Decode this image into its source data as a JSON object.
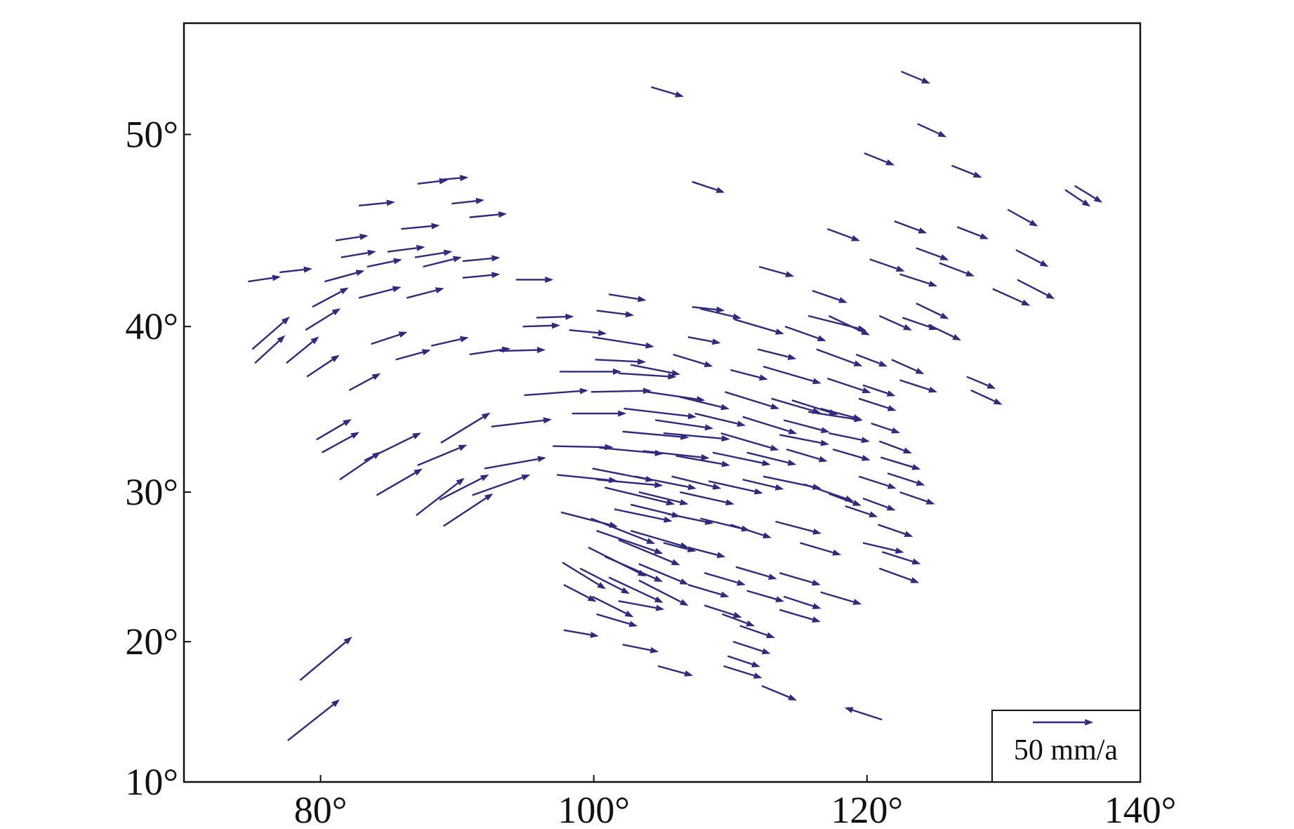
{
  "chart_data": {
    "type": "quiver",
    "color": "#2e2a7c",
    "yscale": "mercator",
    "xlim": [
      70,
      140
    ],
    "ylim": [
      10,
      55
    ],
    "xticks": [
      {
        "value": 80,
        "label": "80°"
      },
      {
        "value": 100,
        "label": "100°"
      },
      {
        "value": 120,
        "label": "120°"
      },
      {
        "value": 140,
        "label": "140°"
      }
    ],
    "yticks": [
      {
        "value": 10,
        "label": "10°"
      },
      {
        "value": 20,
        "label": "20°"
      },
      {
        "value": 30,
        "label": "30°"
      },
      {
        "value": 40,
        "label": "40°"
      },
      {
        "value": 50,
        "label": "50°"
      }
    ],
    "key": {
      "value": 50,
      "label": "50 mm/a"
    },
    "x": [
      74.7,
      77.0,
      81.1,
      82.8,
      87.1,
      88.7,
      89.6,
      90.9,
      85.9,
      81.5,
      83.4,
      84.9,
      86.9,
      87.5,
      90.4,
      80.3,
      82.8,
      86.3,
      90.4,
      94.3,
      79.4,
      78.9,
      75.0,
      75.2,
      77.5,
      79.0,
      82.1,
      83.7,
      85.5,
      88.1,
      90.9,
      93.1,
      79.7,
      80.1,
      81.4,
      83.2,
      84.1,
      87.1,
      88.8,
      87.0,
      89.0,
      88.7,
      91.1,
      92.0,
      92.5,
      78.5,
      77.6,
      104.2,
      122.5,
      123.7,
      119.8,
      126.2,
      107.2,
      130.3,
      134.5,
      135.2,
      117.1,
      122.0,
      126.6,
      130.9,
      123.6,
      120.2,
      125.3,
      112.1,
      122.4,
      131.0,
      129.2,
      116.0,
      101.1,
      123.6,
      100.2,
      107.2,
      107.8,
      110.3,
      115.7,
      117.2,
      114.0,
      120.9,
      124.5,
      122.6,
      95.8,
      94.8,
      98.2,
      99.9,
      106.9,
      112.0,
      116.3,
      119.2,
      121.8,
      127.3,
      127.6,
      122.4,
      100.1,
      102.7,
      105.8,
      97.5,
      101.8,
      110.0,
      112.4,
      117.1,
      119.7,
      94.9,
      99.8,
      103.9,
      106.3,
      109.6,
      113.0,
      114.5,
      116.6,
      119.4,
      98.4,
      102.2,
      104.5,
      107.4,
      110.9,
      113.9,
      115.7,
      120.3,
      102.1,
      105.1,
      109.3,
      113.6,
      117.2,
      120.9,
      97.0,
      100.4,
      103.6,
      106.0,
      108.7,
      111.2,
      114.1,
      117.5,
      121.0,
      97.3,
      99.9,
      100.2,
      103.0,
      105.7,
      108.4,
      110.9,
      112.4,
      115.4,
      119.4,
      121.5,
      122.4,
      100.8,
      103.3,
      106.3,
      117.2,
      119.7,
      97.6,
      99.8,
      101.5,
      102.7,
      105.4,
      107.8,
      110.0,
      113.3,
      118.4,
      120.8,
      100.2,
      101.8,
      102.7,
      105.1,
      106.9,
      115.1,
      119.7,
      121.1,
      99.6,
      100.8,
      103.3,
      108.1,
      110.4,
      113.6,
      120.9,
      97.7,
      99.0,
      101.1,
      103.3,
      106.9,
      111.2,
      113.9,
      116.6,
      97.8,
      99.9,
      101.8,
      108.1,
      113.6,
      100.2,
      109.4,
      110.7,
      97.8,
      102.1,
      110.2,
      109.8,
      104.7,
      109.5,
      112.3,
      121.1
    ],
    "y": [
      42.5,
      43.0,
      44.7,
      46.5,
      47.6,
      47.8,
      46.6,
      45.9,
      45.3,
      43.8,
      43.3,
      44.1,
      43.8,
      43.3,
      43.6,
      42.5,
      41.6,
      41.6,
      42.7,
      42.6,
      41.1,
      39.8,
      38.7,
      37.9,
      37.9,
      37.1,
      36.3,
      39.0,
      38.1,
      38.9,
      38.4,
      38.6,
      33.3,
      32.5,
      30.8,
      32.0,
      29.8,
      31.7,
      33.1,
      28.5,
      27.8,
      29.5,
      29.8,
      31.5,
      34.1,
      17.3,
      13.0,
      52.2,
      52.9,
      50.5,
      49.1,
      48.5,
      47.7,
      46.3,
      47.3,
      47.5,
      45.3,
      45.7,
      45.4,
      44.2,
      44.3,
      43.7,
      43.5,
      43.3,
      42.9,
      42.6,
      42.1,
      42.0,
      41.8,
      41.3,
      40.9,
      41.1,
      41.0,
      40.4,
      40.6,
      40.6,
      40.0,
      40.6,
      40.1,
      40.5,
      40.5,
      40.0,
      39.8,
      39.4,
      39.4,
      38.7,
      38.7,
      38.4,
      38.1,
      37.1,
      36.3,
      36.9,
      38.1,
      37.8,
      38.4,
      37.4,
      37.3,
      37.5,
      37.7,
      37.0,
      36.6,
      36.0,
      36.2,
      36.2,
      35.9,
      36.2,
      35.8,
      35.7,
      35.2,
      35.8,
      34.9,
      35.2,
      34.5,
      34.9,
      34.7,
      34.5,
      35.0,
      34.3,
      33.8,
      33.7,
      33.7,
      33.6,
      33.7,
      33.2,
      32.9,
      32.8,
      32.6,
      32.3,
      32.5,
      32.5,
      32.7,
      32.7,
      32.2,
      31.1,
      31.5,
      30.8,
      31.0,
      31.0,
      30.7,
      30.8,
      31.0,
      30.5,
      31.0,
      31.2,
      30.0,
      30.3,
      30.0,
      30.0,
      29.9,
      29.6,
      28.7,
      28.3,
      28.9,
      29.2,
      28.6,
      28.3,
      27.9,
      28.1,
      29.1,
      27.9,
      27.5,
      26.9,
      27.5,
      26.7,
      26.4,
      26.7,
      26.7,
      26.1,
      26.4,
      25.8,
      25.3,
      24.7,
      25.1,
      24.7,
      25.0,
      25.4,
      25.0,
      24.4,
      24.2,
      23.9,
      23.5,
      23.1,
      23.4,
      23.9,
      23.1,
      22.8,
      22.5,
      22.2,
      21.9,
      21.9,
      21.1,
      20.8,
      19.8,
      20.0,
      19.0,
      18.3,
      18.3,
      16.9,
      14.5
    ],
    "u": [
      27,
      27,
      27,
      30,
      25,
      24,
      27,
      31,
      32,
      29,
      29,
      31,
      31,
      32,
      31,
      33,
      35,
      31,
      31,
      31,
      30,
      29,
      31,
      25,
      27,
      27,
      26,
      30,
      29,
      31,
      34,
      38,
      29,
      31,
      34,
      47,
      38,
      41,
      41,
      40,
      41,
      41,
      48,
      51,
      50,
      43,
      43,
      27,
      24,
      24,
      25,
      25,
      27,
      25,
      21,
      23,
      27,
      27,
      26,
      27,
      27,
      29,
      29,
      29,
      31,
      31,
      31,
      29,
      31,
      27,
      31,
      27,
      34,
      41,
      48,
      34,
      34,
      27,
      27,
      29,
      31,
      31,
      31,
      51,
      27,
      32,
      38,
      26,
      27,
      24,
      26,
      31,
      42,
      41,
      33,
      51,
      48,
      31,
      48,
      36,
      27,
      53,
      50,
      48,
      41,
      45,
      41,
      38,
      34,
      31,
      45,
      60,
      48,
      42,
      45,
      38,
      45,
      24,
      55,
      55,
      48,
      41,
      34,
      27,
      50,
      53,
      55,
      45,
      48,
      41,
      34,
      31,
      33,
      50,
      51,
      55,
      51,
      41,
      45,
      34,
      48,
      41,
      31,
      31,
      29,
      58,
      41,
      45,
      27,
      27,
      47,
      53,
      48,
      41,
      38,
      41,
      34,
      38,
      27,
      29,
      55,
      51,
      48,
      27,
      31,
      34,
      34,
      32,
      48,
      48,
      41,
      34,
      34,
      34,
      33,
      36,
      41,
      45,
      41,
      34,
      31,
      31,
      34,
      27,
      34,
      38,
      31,
      34,
      34,
      27,
      29,
      29,
      30,
      31,
      27,
      29,
      32,
      29,
      -31
    ],
    "v": [
      4,
      3,
      4,
      3,
      3,
      2,
      3,
      3,
      3,
      5,
      6,
      4,
      5,
      8,
      3,
      9,
      9,
      8,
      3,
      0,
      16,
      18,
      27,
      23,
      22,
      18,
      14,
      10,
      8,
      7,
      5,
      1,
      17,
      17,
      23,
      23,
      22,
      17,
      25,
      31,
      27,
      21,
      17,
      9,
      6,
      36,
      34,
      -8,
      -10,
      -11,
      -10,
      -10,
      -9,
      -14,
      -14,
      -14,
      -10,
      -10,
      -10,
      -14,
      -10,
      -10,
      -11,
      -8,
      -10,
      -16,
      -14,
      -10,
      -5,
      -13,
      -4,
      -3,
      -8,
      -12,
      -12,
      -16,
      -12,
      -12,
      -13,
      -10,
      1,
      1,
      -3,
      -8,
      -5,
      -8,
      -14,
      -10,
      -12,
      -10,
      -12,
      -10,
      -2,
      -8,
      -10,
      0,
      -3,
      -8,
      -14,
      -12,
      -9,
      4,
      1,
      -7,
      -10,
      -14,
      -12,
      -12,
      -9,
      -10,
      0,
      -7,
      -7,
      -10,
      -14,
      -10,
      -7,
      -8,
      -5,
      -5,
      -14,
      -8,
      -7,
      -10,
      -1,
      -5,
      -6,
      -8,
      -10,
      -10,
      -10,
      -9,
      -10,
      -5,
      -10,
      -5,
      -10,
      -10,
      -10,
      -8,
      -10,
      -14,
      -10,
      -10,
      -10,
      -14,
      -10,
      -10,
      -10,
      -10,
      -12,
      -21,
      -10,
      -10,
      -8,
      -10,
      -11,
      -10,
      -9,
      -10,
      -19,
      -21,
      -14,
      -7,
      -8,
      -10,
      -8,
      -10,
      -24,
      -21,
      -17,
      -10,
      -10,
      -10,
      -12,
      -22,
      -21,
      -21,
      -21,
      -10,
      -9,
      -10,
      -10,
      -14,
      -17,
      -7,
      -10,
      -10,
      -10,
      -10,
      -10,
      -5,
      -6,
      -10,
      -9,
      -8,
      -10,
      -12,
      10
    ]
  }
}
